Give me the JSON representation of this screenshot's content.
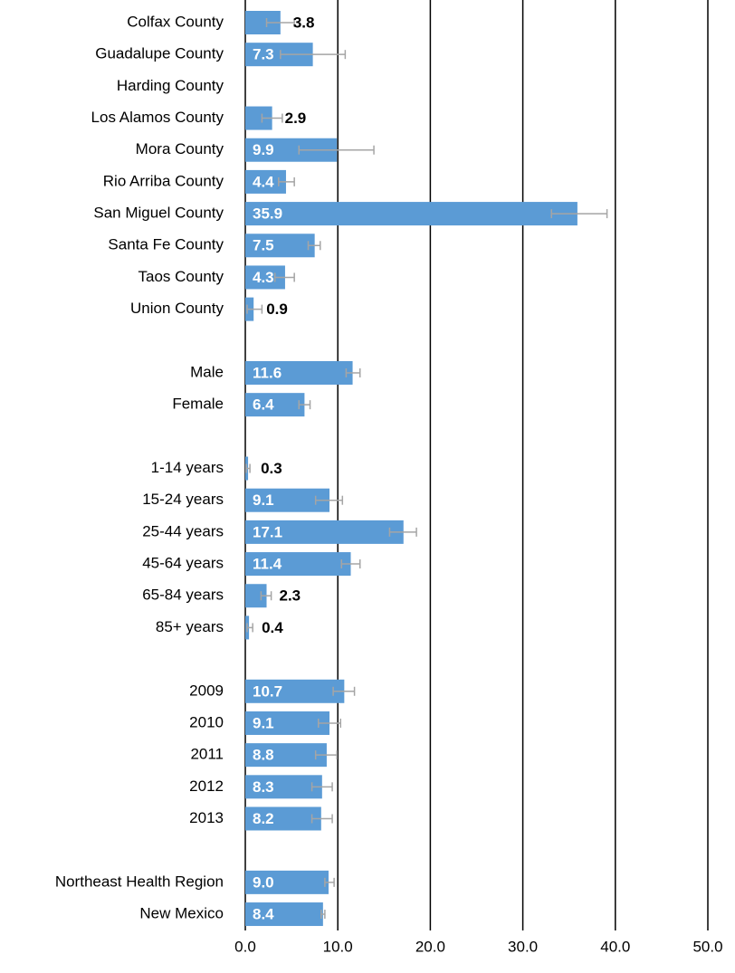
{
  "chart_data": {
    "type": "hbar",
    "categories": [
      "Colfax County",
      "Guadalupe County",
      "Harding County",
      "Los Alamos County",
      "Mora County",
      "Rio Arriba County",
      "San Miguel County",
      "Santa Fe County",
      "Taos County",
      "Union County",
      null,
      "Male",
      "Female",
      null,
      "1-14 years",
      "15-24 years",
      "25-44 years",
      "45-64 years",
      "65-84 years",
      "85+ years",
      null,
      "2009",
      "2010",
      "2011",
      "2012",
      "2013",
      null,
      "Northeast Health Region",
      "New Mexico"
    ],
    "values": [
      3.8,
      7.3,
      null,
      2.9,
      9.9,
      4.4,
      35.9,
      7.5,
      4.3,
      0.9,
      null,
      11.6,
      6.4,
      null,
      0.3,
      9.1,
      17.1,
      11.4,
      2.3,
      0.4,
      null,
      10.7,
      9.1,
      8.8,
      8.3,
      8.2,
      null,
      9.0,
      8.4
    ],
    "value_labels": [
      "3.8",
      "7.3",
      null,
      "2.9",
      "9.9",
      "4.4",
      "35.9",
      "7.5",
      "4.3",
      "0.9",
      null,
      "11.6",
      "6.4",
      null,
      "0.3",
      "9.1",
      "17.1",
      "11.4",
      "2.3",
      "0.4",
      null,
      "10.7",
      "9.1",
      "8.8",
      "8.3",
      "8.2",
      null,
      "9.0",
      "8.4"
    ],
    "ci_lower": [
      2.3,
      3.8,
      null,
      1.8,
      5.8,
      3.6,
      33.1,
      6.8,
      3.2,
      0.2,
      null,
      10.9,
      5.8,
      null,
      0.1,
      7.6,
      15.6,
      10.4,
      1.7,
      0.2,
      null,
      9.5,
      7.9,
      7.6,
      7.2,
      7.2,
      null,
      8.6,
      8.2
    ],
    "ci_upper": [
      5.3,
      10.8,
      null,
      4.0,
      13.9,
      5.3,
      39.1,
      8.1,
      5.3,
      1.8,
      null,
      12.4,
      7.0,
      null,
      0.5,
      10.5,
      18.5,
      12.4,
      2.8,
      0.8,
      null,
      11.8,
      10.3,
      9.9,
      9.4,
      9.4,
      null,
      9.6,
      8.6
    ],
    "color": "#5b9bd5",
    "error_color": "#a5a5a5",
    "xlim": [
      0,
      50
    ],
    "xticks": [
      {
        "value": 0,
        "label": "0.0"
      },
      {
        "value": 10,
        "label": "10.0"
      },
      {
        "value": 20,
        "label": "20.0"
      },
      {
        "value": 30,
        "label": "30.0"
      },
      {
        "value": 40,
        "label": "40.0"
      },
      {
        "value": 50,
        "label": "50.0"
      }
    ],
    "grid": true
  }
}
